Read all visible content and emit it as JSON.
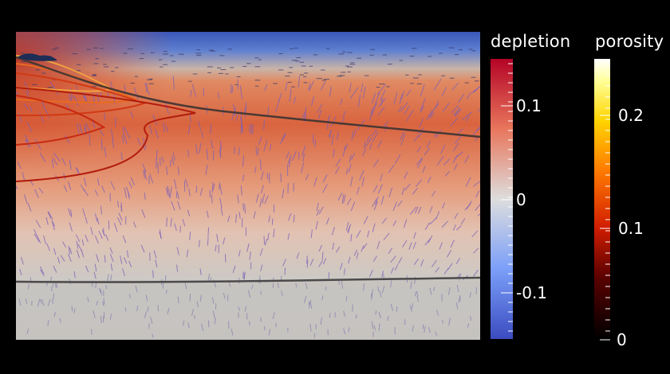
{
  "colorbars": {
    "depletion": {
      "title": "depletion",
      "labels": [
        "0.1",
        "0",
        "-0.1"
      ],
      "colors": {
        "top": "#b40426",
        "mid": "#dddddd",
        "bottom": "#3b4cc0"
      }
    },
    "porosity": {
      "title": "porosity",
      "labels": [
        "0.2",
        "0.1",
        "0"
      ],
      "colors": [
        "#000000",
        "#5a0000",
        "#d21e00",
        "#ff7a00",
        "#ffd400",
        "#ffff96",
        "#ffffff"
      ]
    }
  }
}
